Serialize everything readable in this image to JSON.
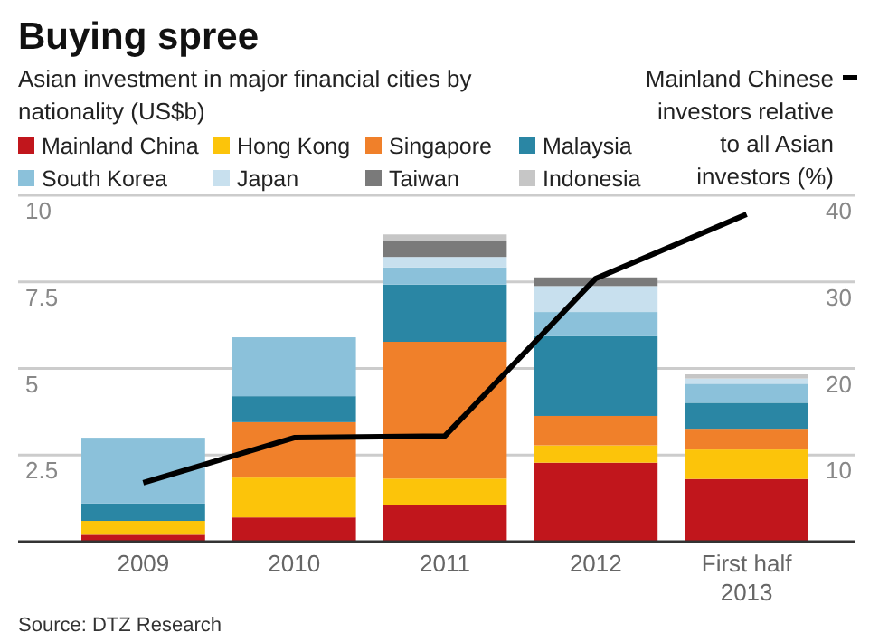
{
  "chart_data": {
    "type": "bar",
    "stacked": true,
    "title": "Buying spree",
    "subtitle": "Asian investment in major financial cities by nationality (US$b)",
    "categories": [
      "2009",
      "2010",
      "2011",
      "2012",
      "First half 2013"
    ],
    "series": [
      {
        "name": "Mainland China",
        "color": "#c1161c",
        "values": [
          0.2,
          0.7,
          1.07,
          2.28,
          1.81
        ]
      },
      {
        "name": "Hong Kong",
        "color": "#fcc40a",
        "values": [
          0.4,
          1.15,
          0.75,
          0.5,
          0.85
        ]
      },
      {
        "name": "Singapore",
        "color": "#f0802a",
        "values": [
          0,
          1.6,
          3.95,
          0.85,
          0.6
        ]
      },
      {
        "name": "Malaysia",
        "color": "#2a86a4",
        "values": [
          0.5,
          0.75,
          1.65,
          2.3,
          0.75
        ]
      },
      {
        "name": "South Korea",
        "color": "#8bc1da",
        "values": [
          1.9,
          1.7,
          0.5,
          0.7,
          0.55
        ]
      },
      {
        "name": "Japan",
        "color": "#c8e0ee",
        "values": [
          0,
          0,
          0.3,
          0.75,
          0.15
        ]
      },
      {
        "name": "Taiwan",
        "color": "#7a7a7a",
        "values": [
          0,
          0,
          0.45,
          0.25,
          0
        ]
      },
      {
        "name": "Indonesia",
        "color": "#c6c6c6",
        "values": [
          0,
          0,
          0.2,
          0,
          0.12
        ]
      },
      {
        "name": "Mainland Chinese investors relative to all Asian investors (%)",
        "type": "line",
        "axis": "y2",
        "color": "#000000",
        "values": [
          6.8,
          12,
          12.2,
          30.4,
          37.8
        ]
      }
    ],
    "ylim": [
      0,
      10
    ],
    "yticks": [
      2.5,
      5,
      7.5,
      10
    ],
    "y2lim": [
      0,
      40
    ],
    "y2ticks": [
      10,
      20,
      30,
      40
    ],
    "grid": "y",
    "legend": "top",
    "annotations": [
      "Source: DTZ Research"
    ]
  }
}
